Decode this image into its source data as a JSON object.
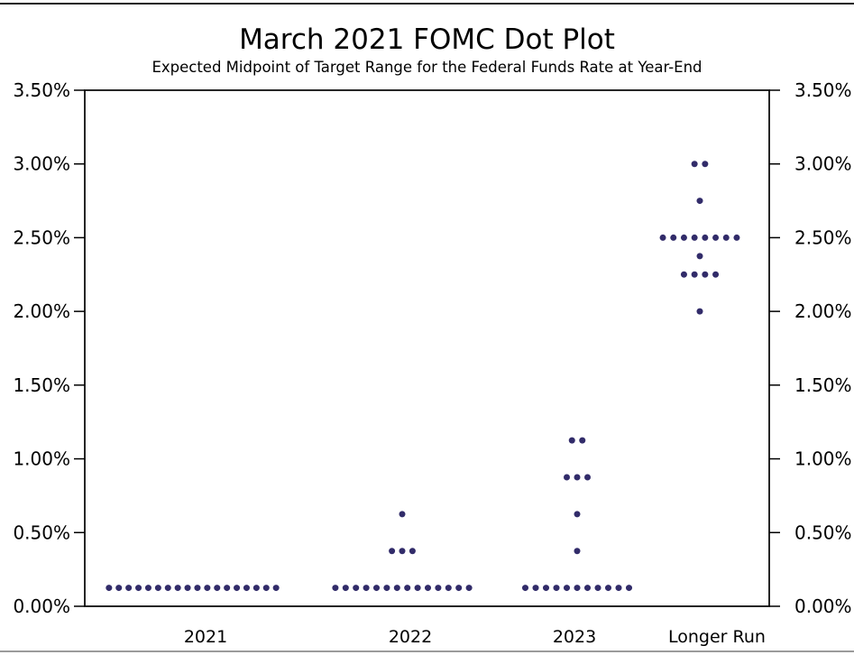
{
  "page": {
    "title": "March 2021 FOMC Dot Plot",
    "subtitle": "Expected Midpoint of Target Range for the Federal Funds Rate at Year-End"
  },
  "chart_data": {
    "type": "scatter",
    "subtype": "fomc-dot-plot",
    "title": "March 2021 FOMC Dot Plot",
    "subtitle": "Expected Midpoint of Target Range for the Federal Funds Rate at Year-End",
    "categories": [
      "2021",
      "2022",
      "2023",
      "Longer Run"
    ],
    "x_axis": {
      "label": "",
      "tick_labels": [
        "2021",
        "2022",
        "2023",
        "Longer Run"
      ]
    },
    "y_axis": {
      "label": "",
      "min": 0,
      "max": 3.5,
      "tick_step": 0.5,
      "tick_values": [
        0,
        0.5,
        1.0,
        1.5,
        2.0,
        2.5,
        3.0,
        3.5
      ],
      "tick_labels": [
        "0.00%",
        "0.50%",
        "1.00%",
        "1.50%",
        "2.00%",
        "2.50%",
        "3.00%",
        "3.50%"
      ],
      "labels_on_both_sides": true
    },
    "grid": false,
    "legend": false,
    "dot_color": "#322c6a",
    "axis_color": "#000000",
    "background_color": "#ffffff",
    "series": [
      {
        "category": "2021",
        "dots": [
          {
            "rate": 0.125,
            "count": 18
          }
        ]
      },
      {
        "category": "2022",
        "dots": [
          {
            "rate": 0.125,
            "count": 14
          },
          {
            "rate": 0.375,
            "count": 3
          },
          {
            "rate": 0.625,
            "count": 1
          }
        ]
      },
      {
        "category": "2023",
        "dots": [
          {
            "rate": 0.125,
            "count": 11
          },
          {
            "rate": 0.375,
            "count": 1
          },
          {
            "rate": 0.625,
            "count": 1
          },
          {
            "rate": 0.875,
            "count": 3
          },
          {
            "rate": 1.125,
            "count": 2
          }
        ]
      },
      {
        "category": "Longer Run",
        "dots": [
          {
            "rate": 2.0,
            "count": 1
          },
          {
            "rate": 2.25,
            "count": 4
          },
          {
            "rate": 2.375,
            "count": 1
          },
          {
            "rate": 2.5,
            "count": 8
          },
          {
            "rate": 2.75,
            "count": 1
          },
          {
            "rate": 3.0,
            "count": 2
          }
        ]
      }
    ]
  }
}
